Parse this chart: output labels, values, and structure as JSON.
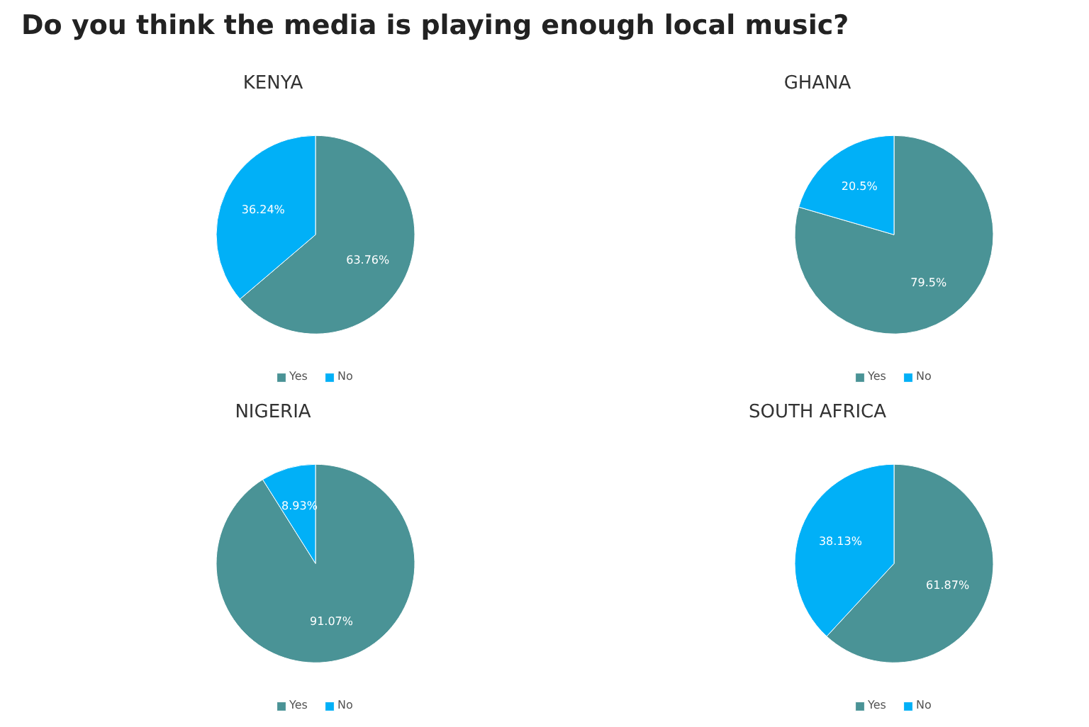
{
  "chart_data": [
    {
      "type": "other",
      "title": "Do you think the media is playing enough local music?"
    },
    {
      "type": "pie",
      "title": "KENYA",
      "categories": [
        "Yes",
        "No"
      ],
      "values": [
        63.76,
        36.24
      ],
      "colors": [
        "#4a9396",
        "#01b0f7"
      ],
      "value_labels": [
        "63.76%",
        "36.24%"
      ],
      "legend": "bottom"
    },
    {
      "type": "pie",
      "title": "GHANA",
      "categories": [
        "Yes",
        "No"
      ],
      "values": [
        79.5,
        20.5
      ],
      "colors": [
        "#4a9396",
        "#01b0f7"
      ],
      "value_labels": [
        "79.5%",
        "20.5%"
      ],
      "legend": "bottom"
    },
    {
      "type": "pie",
      "title": "NIGERIA",
      "categories": [
        "Yes",
        "No"
      ],
      "values": [
        91.07,
        8.93
      ],
      "colors": [
        "#4a9396",
        "#01b0f7"
      ],
      "value_labels": [
        "91.07%",
        "8.93%"
      ],
      "legend": "bottom"
    },
    {
      "type": "pie",
      "title": "SOUTH AFRICA",
      "categories": [
        "Yes",
        "No"
      ],
      "values": [
        61.87,
        38.13
      ],
      "colors": [
        "#4a9396",
        "#01b0f7"
      ],
      "value_labels": [
        "61.87%",
        "38.13%"
      ],
      "legend": "bottom"
    }
  ]
}
